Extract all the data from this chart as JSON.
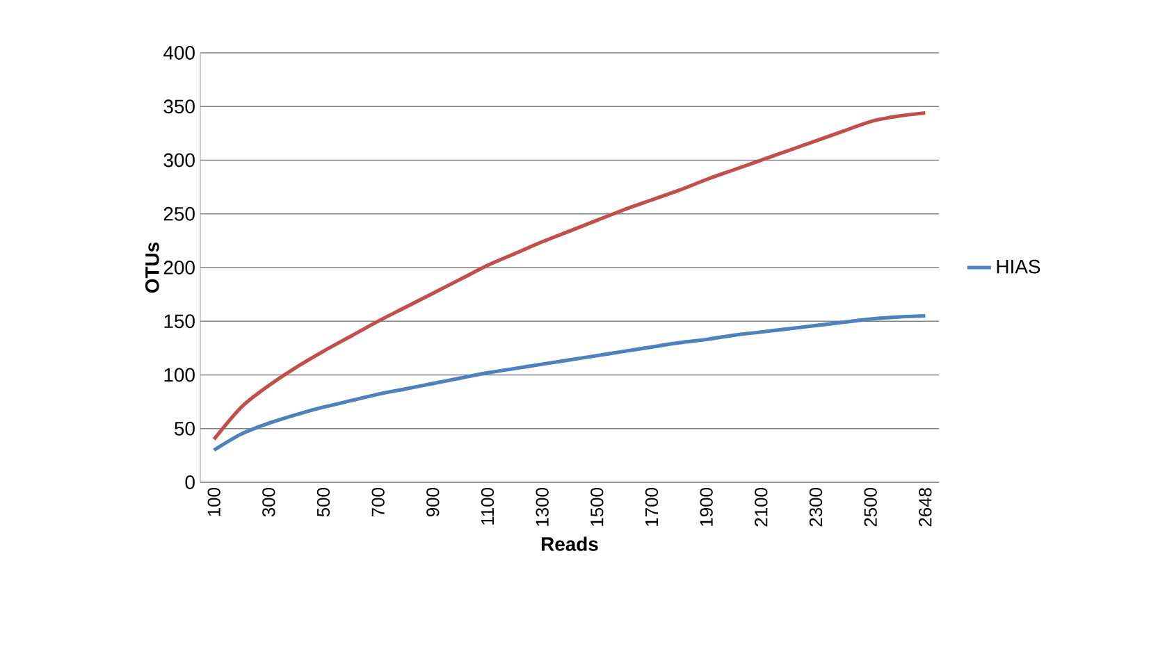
{
  "chart_data": {
    "type": "line",
    "xlabel": "Reads",
    "ylabel": "OTUs",
    "categories": [
      "100",
      null,
      "300",
      null,
      "500",
      null,
      "700",
      null,
      "900",
      null,
      "1100",
      null,
      "1300",
      null,
      "1500",
      null,
      "1700",
      null,
      "1900",
      null,
      "2100",
      null,
      "2300",
      null,
      "2500",
      null,
      "2648"
    ],
    "series": [
      {
        "name": "HIAS",
        "color": "#4f81bd",
        "values": [
          30,
          45,
          55,
          63,
          70,
          76,
          82,
          87,
          92,
          97,
          102,
          106,
          110,
          114,
          118,
          122,
          126,
          130,
          133,
          137,
          140,
          143,
          146,
          149,
          152,
          154,
          155
        ]
      },
      {
        "color": "#c0504d",
        "values": [
          40,
          70,
          90,
          107,
          122,
          136,
          150,
          163,
          176,
          189,
          202,
          213,
          224,
          234,
          244,
          254,
          263,
          272,
          282,
          291,
          300,
          309,
          318,
          327,
          336,
          341,
          344
        ]
      }
    ],
    "ylim": [
      0,
      400
    ],
    "yticks": [
      0,
      50,
      100,
      150,
      200,
      250,
      300,
      350,
      400
    ],
    "grid": "y",
    "legend": "right",
    "marker": "none",
    "line_style": "solid"
  }
}
